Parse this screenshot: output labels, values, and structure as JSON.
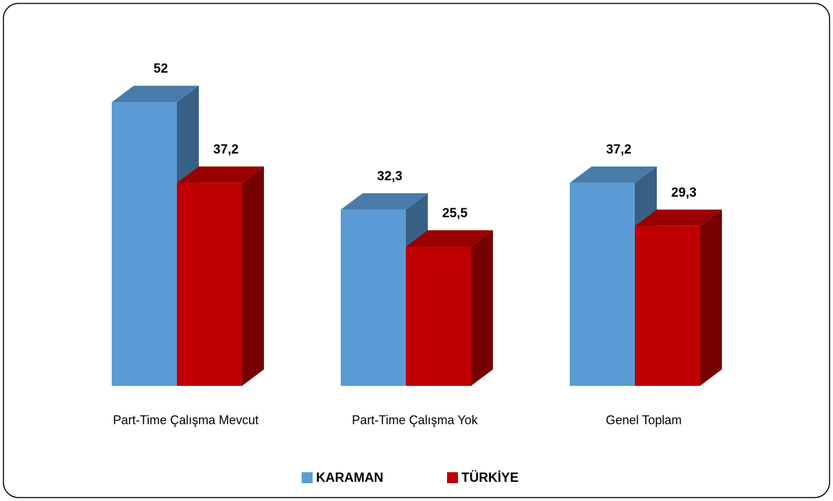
{
  "chart_data": {
    "type": "bar3d",
    "categories": [
      "Part-Time Çalışma Mevcut",
      "Part-Time Çalışma Yok",
      "Genel Toplam"
    ],
    "series": [
      {
        "name": "KARAMAN",
        "color": "#5b9bd5",
        "values": [
          52,
          32.3,
          37.2
        ],
        "value_labels": [
          "52",
          "32,3",
          "37,2"
        ]
      },
      {
        "name": "TÜRKİYE",
        "color": "#c00000",
        "values": [
          37.2,
          25.5,
          29.3
        ],
        "value_labels": [
          "37,2",
          "25,5",
          "29,3"
        ]
      }
    ],
    "legend": "bottom"
  }
}
